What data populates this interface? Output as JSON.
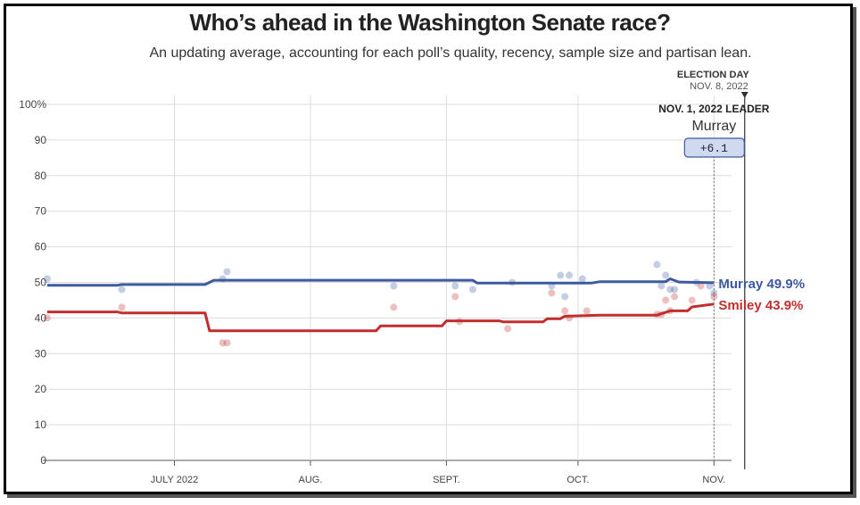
{
  "chart_data": {
    "type": "line",
    "title": "Who’s ahead in the Washington Senate race?",
    "subtitle": "An updating average, accounting for each poll’s quality, recency, sample size and partisan lean.",
    "ylim": [
      0,
      100
    ],
    "y_ticks": [
      "0",
      "10",
      "20",
      "30",
      "40",
      "50",
      "60",
      "70",
      "80",
      "90",
      "100%"
    ],
    "y_tick_values": [
      0,
      10,
      20,
      30,
      40,
      50,
      60,
      70,
      80,
      90,
      100
    ],
    "x_domain_days": [
      0,
      157
    ],
    "x_ticks": [
      {
        "label": "JULY 2022",
        "day": 30
      },
      {
        "label": "AUG.",
        "day": 61
      },
      {
        "label": "SEPT.",
        "day": 92
      },
      {
        "label": "OCT.",
        "day": 122
      },
      {
        "label": "NOV.",
        "day": 153
      }
    ],
    "series": [
      {
        "name": "Murray",
        "color": "#3d5a9e",
        "final_label": "Murray 49.9%",
        "line": [
          [
            1,
            49.2
          ],
          [
            17,
            49.2
          ],
          [
            18,
            49.4
          ],
          [
            37,
            49.4
          ],
          [
            39,
            50.6
          ],
          [
            98,
            50.6
          ],
          [
            99,
            49.8
          ],
          [
            125,
            49.8
          ],
          [
            127,
            50.2
          ],
          [
            142,
            50.2
          ],
          [
            143,
            51.0
          ],
          [
            145,
            50.1
          ],
          [
            153,
            49.9
          ]
        ],
        "polls": [
          [
            1,
            51
          ],
          [
            18,
            48
          ],
          [
            41,
            51
          ],
          [
            42,
            53
          ],
          [
            80,
            49
          ],
          [
            94,
            49
          ],
          [
            98,
            48
          ],
          [
            107,
            50
          ],
          [
            116,
            49
          ],
          [
            118,
            52
          ],
          [
            119,
            46
          ],
          [
            120,
            52
          ],
          [
            123,
            51
          ],
          [
            140,
            55
          ],
          [
            141,
            49
          ],
          [
            142,
            52
          ],
          [
            143,
            48
          ],
          [
            144,
            48
          ],
          [
            149,
            50
          ],
          [
            152,
            49
          ],
          [
            153,
            47
          ]
        ]
      },
      {
        "name": "Smiley",
        "color": "#c22e2e",
        "final_label": "Smiley 43.9%",
        "line": [
          [
            1,
            41.7
          ],
          [
            17,
            41.7
          ],
          [
            18,
            41.4
          ],
          [
            37,
            41.4
          ],
          [
            38,
            36.4
          ],
          [
            76,
            36.4
          ],
          [
            77,
            37.8
          ],
          [
            91,
            37.8
          ],
          [
            92,
            39.2
          ],
          [
            104,
            39.2
          ],
          [
            105,
            38.9
          ],
          [
            114,
            38.9
          ],
          [
            115,
            39.8
          ],
          [
            118,
            39.8
          ],
          [
            119,
            40.5
          ],
          [
            127,
            40.8
          ],
          [
            140,
            40.8
          ],
          [
            143,
            42.0
          ],
          [
            147,
            42.0
          ],
          [
            148,
            43.1
          ],
          [
            153,
            43.9
          ]
        ],
        "polls": [
          [
            1,
            40
          ],
          [
            18,
            43
          ],
          [
            41,
            33
          ],
          [
            42,
            33
          ],
          [
            80,
            43
          ],
          [
            94,
            46
          ],
          [
            95,
            39
          ],
          [
            106,
            37
          ],
          [
            116,
            47
          ],
          [
            119,
            42
          ],
          [
            120,
            40
          ],
          [
            124,
            42
          ],
          [
            140,
            41
          ],
          [
            141,
            41
          ],
          [
            142,
            45
          ],
          [
            143,
            42
          ],
          [
            144,
            46
          ],
          [
            148,
            45
          ],
          [
            150,
            49
          ],
          [
            153,
            46
          ]
        ]
      }
    ],
    "election_day": {
      "label": "ELECTION DAY",
      "date": "NOV. 8, 2022",
      "day": 160
    },
    "leader_box": {
      "heading": "NOV. 1, 2022 LEADER",
      "name": "Murray",
      "margin": "+6.1",
      "day": 153
    }
  }
}
